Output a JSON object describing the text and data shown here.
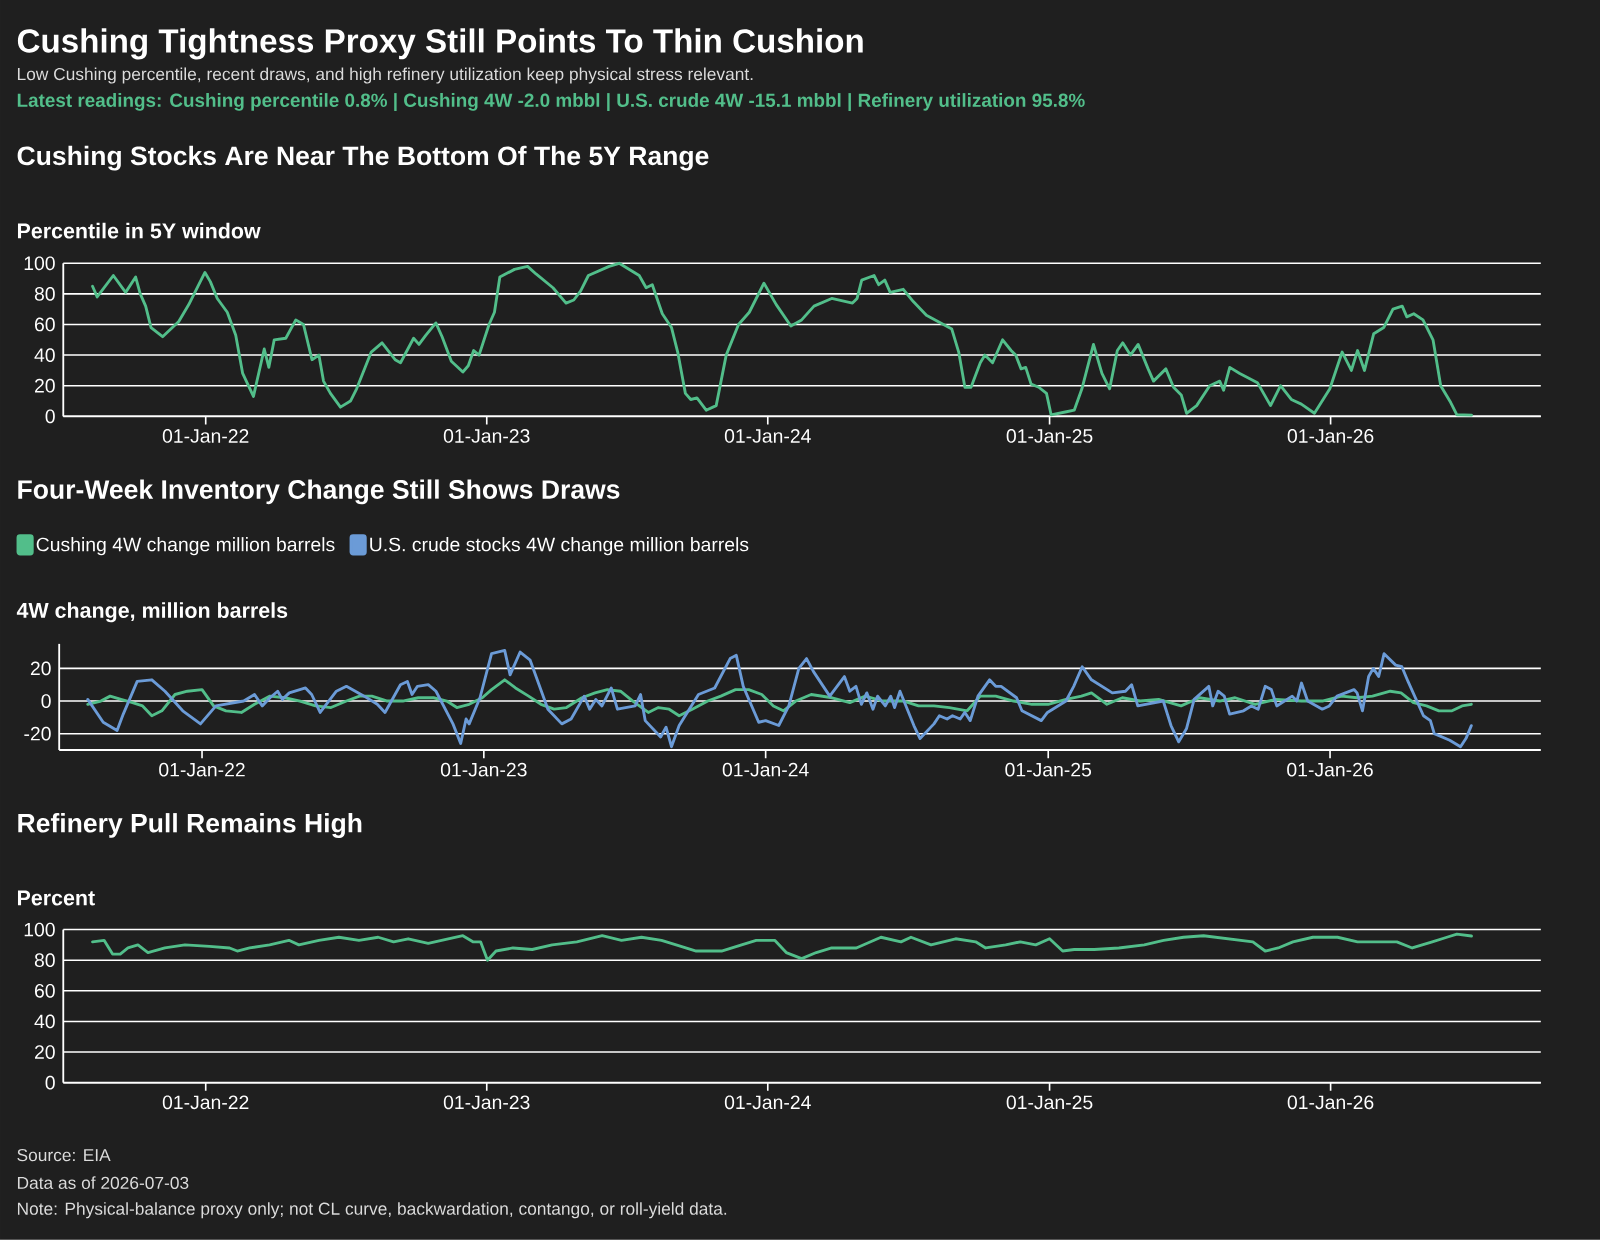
{
  "chart_data": [
    {
      "type": "other",
      "title": "Cushing Tightness Proxy Still Points To Thin Cushion",
      "subtitle": "Low Cushing percentile, recent draws, and high refinery utilization keep physical stress relevant.",
      "annotations": [
        "Latest readings: Cushing percentile 0.8% | Cushing 4W -2.0 mbbl | U.S. crude 4W -15.1 mbbl | Refinery utilization 95.8%"
      ]
    },
    {
      "type": "line",
      "title": "Cushing Stocks Are Near The Bottom Of The 5Y Range",
      "ylabel": "Percentile in 5Y window",
      "x": [
        "2021-08-07",
        "2021-08-13",
        "2021-09-03",
        "2021-09-19",
        "2021-10-02",
        "2021-10-08",
        "2021-10-15",
        "2021-10-22",
        "2021-11-06",
        "2021-11-27",
        "2021-12-10",
        "2021-12-22",
        "2021-12-31",
        "2022-01-07",
        "2022-01-16",
        "2022-01-29",
        "2022-02-09",
        "2022-02-18",
        "2022-03-04",
        "2022-03-18",
        "2022-03-24",
        "2022-03-31",
        "2022-04-15",
        "2022-04-28",
        "2022-05-08",
        "2022-05-19",
        "2022-05-28",
        "2022-06-03",
        "2022-06-12",
        "2022-06-25",
        "2022-07-08",
        "2022-07-16",
        "2022-08-04",
        "2022-08-18",
        "2022-09-04",
        "2022-09-11",
        "2022-09-28",
        "2022-10-05",
        "2022-10-14",
        "2022-10-27",
        "2022-11-04",
        "2022-11-16",
        "2022-12-01",
        "2022-12-08",
        "2022-12-15",
        "2022-12-22",
        "2023-01-04",
        "2023-01-11",
        "2023-01-18",
        "2023-02-06",
        "2023-02-23",
        "2023-03-06",
        "2023-03-28",
        "2023-04-14",
        "2023-04-24",
        "2023-05-03",
        "2023-05-13",
        "2023-06-09",
        "2023-06-22",
        "2023-07-18",
        "2023-07-27",
        "2023-08-04",
        "2023-08-17",
        "2023-08-29",
        "2023-09-06",
        "2023-09-16",
        "2023-09-23",
        "2023-10-01",
        "2023-10-13",
        "2023-10-26",
        "2023-11-08",
        "2023-11-24",
        "2023-12-08",
        "2023-12-27",
        "2024-01-12",
        "2024-01-31",
        "2024-02-14",
        "2024-03-01",
        "2024-03-24",
        "2024-04-20",
        "2024-04-26",
        "2024-05-02",
        "2024-05-18",
        "2024-05-24",
        "2024-06-01",
        "2024-06-08",
        "2024-06-25",
        "2024-07-08",
        "2024-07-25",
        "2024-08-27",
        "2024-09-05",
        "2024-09-13",
        "2024-09-21",
        "2024-10-03",
        "2024-10-09",
        "2024-10-19",
        "2024-11-01",
        "2024-11-12",
        "2024-11-18",
        "2024-11-25",
        "2024-12-01",
        "2024-12-08",
        "2024-12-18",
        "2024-12-28",
        "2025-01-03",
        "2025-01-23",
        "2025-02-02",
        "2025-02-12",
        "2025-02-27",
        "2025-03-10",
        "2025-03-20",
        "2025-03-30",
        "2025-04-06",
        "2025-04-16",
        "2025-04-26",
        "2025-05-09",
        "2025-05-16",
        "2025-06-01",
        "2025-06-11",
        "2025-06-21",
        "2025-06-28",
        "2025-07-11",
        "2025-07-28",
        "2025-08-10",
        "2025-08-15",
        "2025-08-23",
        "2025-09-05",
        "2025-09-28",
        "2025-10-15",
        "2025-10-28",
        "2025-11-11",
        "2025-11-24",
        "2025-12-11",
        "2025-12-31",
        "2026-01-16",
        "2026-01-28",
        "2026-02-05",
        "2026-02-14",
        "2026-02-26",
        "2026-03-11",
        "2026-03-23",
        "2026-04-04",
        "2026-04-10",
        "2026-04-19",
        "2026-05-01",
        "2026-05-14",
        "2026-05-24",
        "2026-06-06",
        "2026-06-14",
        "2026-07-03"
      ],
      "series": [
        {
          "color": "#52be8a",
          "values": [
            85,
            78,
            92,
            81,
            91,
            80,
            72,
            58,
            52,
            62,
            73,
            85,
            94,
            88,
            77,
            68,
            53,
            28,
            13,
            44,
            32,
            50,
            51,
            63,
            60,
            37,
            40,
            23,
            15,
            6,
            10,
            18,
            42,
            48,
            37,
            35,
            51,
            47,
            53,
            61,
            52,
            36,
            29,
            33,
            43,
            40,
            60,
            68,
            91,
            96,
            98,
            93,
            84,
            74,
            76,
            82,
            92,
            98,
            100,
            92,
            84,
            86,
            67,
            58,
            42,
            15,
            11,
            12,
            4,
            7,
            40,
            60,
            68,
            87,
            73,
            59,
            63,
            72,
            77,
            74,
            77,
            89,
            92,
            86,
            89,
            81,
            83,
            75,
            66,
            57,
            42,
            19,
            19,
            35,
            40,
            35,
            50,
            43,
            40,
            31,
            32,
            21,
            19,
            15,
            1,
            3,
            4,
            18,
            47,
            28,
            18,
            43,
            48,
            40,
            47,
            31,
            23,
            31,
            19,
            14,
            2,
            7,
            20,
            23,
            17,
            32,
            28,
            22,
            7,
            20,
            11,
            8,
            2,
            18,
            42,
            30,
            43,
            30,
            54,
            58,
            70,
            72,
            65,
            67,
            63,
            50,
            20,
            9,
            1,
            0.8
          ]
        }
      ],
      "xlim": [
        "2021-06-30",
        "2026-10-01"
      ],
      "ylim": [
        0,
        100
      ],
      "xticks": [
        {
          "value": "2022-01-01",
          "label": "01-Jan-22"
        },
        {
          "value": "2023-01-01",
          "label": "01-Jan-23"
        },
        {
          "value": "2024-01-01",
          "label": "01-Jan-24"
        },
        {
          "value": "2025-01-01",
          "label": "01-Jan-25"
        },
        {
          "value": "2026-01-01",
          "label": "01-Jan-26"
        }
      ],
      "yticks": [
        0,
        20,
        40,
        60,
        80,
        100
      ],
      "grid": "y"
    },
    {
      "type": "line",
      "title": "Four-Week Inventory Change Still Shows Draws",
      "ylabel": "4W change, million barrels",
      "series": [
        {
          "name": "Cushing 4W change million barrels",
          "color": "#52be8a",
          "x": [
            "2021-08-06",
            "2021-08-23",
            "2021-09-04",
            "2021-09-18",
            "2021-10-03",
            "2021-10-16",
            "2021-10-28",
            "2021-11-10",
            "2021-11-27",
            "2021-12-13",
            "2022-01-01",
            "2022-01-16",
            "2022-02-01",
            "2022-02-21",
            "2022-03-10",
            "2022-03-30",
            "2022-04-18",
            "2022-05-08",
            "2022-05-28",
            "2022-06-17",
            "2022-07-07",
            "2022-07-24",
            "2022-08-09",
            "2022-08-29",
            "2022-09-18",
            "2022-10-08",
            "2022-10-28",
            "2022-11-14",
            "2022-11-27",
            "2022-12-13",
            "2022-12-30",
            "2023-01-11",
            "2023-01-28",
            "2023-02-11",
            "2023-02-28",
            "2023-03-16",
            "2023-04-02",
            "2023-04-18",
            "2023-05-08",
            "2023-05-25",
            "2023-06-10",
            "2023-06-27",
            "2023-07-13",
            "2023-08-02",
            "2023-08-15",
            "2023-08-29",
            "2023-09-11",
            "2023-09-28",
            "2023-10-18",
            "2023-11-04",
            "2023-11-23",
            "2023-12-10",
            "2023-12-27",
            "2024-01-11",
            "2024-01-24",
            "2024-02-09",
            "2024-02-29",
            "2024-03-27",
            "2024-04-19",
            "2024-05-09",
            "2024-06-01",
            "2024-06-28",
            "2024-07-17",
            "2024-08-06",
            "2024-08-26",
            "2024-09-18",
            "2024-10-05",
            "2024-10-25",
            "2024-11-17",
            "2024-12-11",
            "2025-01-01",
            "2025-01-24",
            "2025-02-13",
            "2025-02-26",
            "2025-03-18",
            "2025-04-07",
            "2025-04-30",
            "2025-05-24",
            "2025-06-22",
            "2025-07-16",
            "2025-08-11",
            "2025-08-31",
            "2025-09-26",
            "2025-10-23",
            "2025-11-25",
            "2025-12-22",
            "2026-01-16",
            "2026-02-05",
            "2026-02-25",
            "2026-03-20",
            "2026-04-03",
            "2026-04-19",
            "2026-05-06",
            "2026-05-22",
            "2026-06-08",
            "2026-06-21",
            "2026-07-03"
          ],
          "values": [
            -2,
            0,
            3,
            1,
            -1,
            -3,
            -9,
            -6,
            4,
            6,
            7,
            -3,
            -6,
            -7,
            -2,
            3,
            2,
            0,
            -3,
            -4,
            0,
            3,
            3,
            0,
            0,
            2,
            2,
            0,
            -4,
            -2,
            2,
            7,
            13,
            8,
            3,
            -2,
            -5,
            -4,
            2,
            5,
            7,
            6,
            0,
            -7,
            -4,
            -5,
            -9,
            -5,
            0,
            3,
            7,
            7,
            4,
            -3,
            -6,
            0,
            4,
            2,
            -1,
            3,
            0,
            0,
            -3,
            -3,
            -4,
            -6,
            3,
            3,
            0,
            -2,
            -2,
            1,
            3,
            5,
            -2,
            2,
            0,
            1,
            -3,
            2,
            0,
            2,
            -2,
            1,
            0,
            0,
            3,
            2,
            3,
            6,
            5,
            -1,
            -3,
            -6,
            -6,
            -3,
            -2.0
          ]
        },
        {
          "name": "U.S. crude stocks 4W change million barrels",
          "color": "#6b9bd7",
          "x": [
            "2021-08-06",
            "2021-08-26",
            "2021-09-13",
            "2021-09-21",
            "2021-10-09",
            "2021-10-28",
            "2021-11-14",
            "2021-12-07",
            "2021-12-30",
            "2022-01-19",
            "2022-02-24",
            "2022-03-10",
            "2022-03-20",
            "2022-03-30",
            "2022-04-09",
            "2022-04-15",
            "2022-04-24",
            "2022-05-15",
            "2022-05-23",
            "2022-06-03",
            "2022-06-24",
            "2022-07-07",
            "2022-07-30",
            "2022-08-16",
            "2022-08-26",
            "2022-09-15",
            "2022-09-24",
            "2022-09-30",
            "2022-10-07",
            "2022-10-21",
            "2022-10-31",
            "2022-11-22",
            "2022-12-02",
            "2022-12-09",
            "2022-12-13",
            "2022-12-27",
            "2023-01-11",
            "2023-01-28",
            "2023-02-04",
            "2023-02-17",
            "2023-03-02",
            "2023-03-25",
            "2023-04-12",
            "2023-04-24",
            "2023-05-11",
            "2023-05-18",
            "2023-05-26",
            "2023-06-03",
            "2023-06-15",
            "2023-06-23",
            "2023-07-16",
            "2023-07-23",
            "2023-07-29",
            "2023-08-18",
            "2023-08-25",
            "2023-09-01",
            "2023-09-11",
            "2023-10-06",
            "2023-10-27",
            "2023-11-16",
            "2023-11-24",
            "2023-12-03",
            "2023-12-23",
            "2024-01-01",
            "2024-01-18",
            "2024-01-31",
            "2024-02-13",
            "2024-02-23",
            "2024-03-03",
            "2024-03-24",
            "2024-04-12",
            "2024-04-19",
            "2024-04-27",
            "2024-05-04",
            "2024-05-11",
            "2024-05-19",
            "2024-05-25",
            "2024-06-04",
            "2024-06-11",
            "2024-06-16",
            "2024-06-23",
            "2024-07-11",
            "2024-07-19",
            "2024-08-06",
            "2024-08-13",
            "2024-08-23",
            "2024-08-30",
            "2024-09-09",
            "2024-09-15",
            "2024-09-22",
            "2024-10-02",
            "2024-10-17",
            "2024-10-25",
            "2024-11-01",
            "2024-11-21",
            "2024-11-28",
            "2024-12-23",
            "2024-12-31",
            "2025-01-24",
            "2025-02-03",
            "2025-02-14",
            "2025-02-26",
            "2025-03-25",
            "2025-04-11",
            "2025-04-19",
            "2025-04-27",
            "2025-05-30",
            "2025-06-09",
            "2025-06-19",
            "2025-06-29",
            "2025-07-09",
            "2025-07-28",
            "2025-08-02",
            "2025-08-09",
            "2025-08-17",
            "2025-08-24",
            "2025-09-11",
            "2025-09-21",
            "2025-09-30",
            "2025-10-09",
            "2025-10-17",
            "2025-10-24",
            "2025-11-13",
            "2025-11-19",
            "2025-11-25",
            "2025-12-03",
            "2025-12-22",
            "2025-12-31",
            "2026-01-10",
            "2026-02-01",
            "2026-02-05",
            "2026-02-12",
            "2026-02-20",
            "2026-02-26",
            "2026-03-05",
            "2026-03-12",
            "2026-03-27",
            "2026-04-04",
            "2026-04-12",
            "2026-05-02",
            "2026-05-11",
            "2026-05-16",
            "2026-06-05",
            "2026-06-19",
            "2026-06-26",
            "2026-07-03"
          ],
          "values": [
            1,
            -13,
            -18,
            -8,
            12,
            13,
            6,
            -6,
            -14,
            -3,
            0,
            4,
            -3,
            2,
            6,
            1,
            5,
            8,
            4,
            -7,
            6,
            9,
            3,
            -2,
            -7,
            10,
            12,
            4,
            9,
            10,
            6,
            -14,
            -26,
            -11,
            -14,
            2,
            29,
            31,
            16,
            30,
            25,
            -5,
            -14,
            -11,
            3,
            -5,
            1,
            -3,
            8,
            -5,
            -3,
            4,
            -12,
            -22,
            -16,
            -28,
            -15,
            4,
            8,
            26,
            28,
            9,
            -13,
            -12,
            -15,
            -3,
            20,
            26,
            18,
            3,
            15,
            6,
            9,
            -2,
            5,
            -5,
            3,
            -3,
            3,
            -4,
            6,
            -15,
            -23,
            -14,
            -9,
            -11,
            -9,
            -11,
            -7,
            -12,
            3,
            13,
            9,
            9,
            2,
            -6,
            -12,
            -7,
            0,
            9,
            21,
            13,
            5,
            6,
            10,
            -3,
            0,
            -15,
            -25,
            -17,
            1,
            9,
            -3,
            6,
            3,
            -8,
            -6,
            -3,
            -5,
            9,
            7,
            -3,
            3,
            0,
            11,
            0,
            -5,
            -3,
            3,
            7,
            5,
            -6,
            15,
            20,
            15,
            29,
            22,
            21,
            12,
            -9,
            -12,
            -20,
            -24,
            -28,
            -23,
            -15.1
          ]
        }
      ],
      "xlim": [
        "2021-06-30",
        "2026-10-01"
      ],
      "ylim": [
        -30,
        35
      ],
      "xticks": [
        {
          "value": "2022-01-01",
          "label": "01-Jan-22"
        },
        {
          "value": "2023-01-01",
          "label": "01-Jan-23"
        },
        {
          "value": "2024-01-01",
          "label": "01-Jan-24"
        },
        {
          "value": "2025-01-01",
          "label": "01-Jan-25"
        },
        {
          "value": "2026-01-01",
          "label": "01-Jan-26"
        }
      ],
      "yticks": [
        -20,
        0,
        20
      ],
      "grid": "y",
      "legend": "top left"
    },
    {
      "type": "line",
      "title": "Refinery Pull Remains High",
      "ylabel": "Percent",
      "x": [
        "2021-08-07",
        "2021-08-22",
        "2021-09-02",
        "2021-09-12",
        "2021-09-22",
        "2021-10-05",
        "2021-10-18",
        "2021-11-09",
        "2021-12-05",
        "2022-01-06",
        "2022-02-01",
        "2022-02-11",
        "2022-02-27",
        "2022-03-25",
        "2022-04-19",
        "2022-05-02",
        "2022-05-28",
        "2022-06-23",
        "2022-07-19",
        "2022-08-13",
        "2022-09-02",
        "2022-09-21",
        "2022-10-17",
        "2022-11-12",
        "2022-12-01",
        "2022-12-14",
        "2022-12-24",
        "2023-01-02",
        "2023-01-13",
        "2023-02-04",
        "2023-03-01",
        "2023-03-27",
        "2023-04-28",
        "2023-05-31",
        "2023-06-25",
        "2023-07-21",
        "2023-08-16",
        "2023-09-04",
        "2023-09-30",
        "2023-11-02",
        "2023-11-28",
        "2023-12-17",
        "2024-01-10",
        "2024-01-25",
        "2024-02-14",
        "2024-03-04",
        "2024-03-24",
        "2024-04-25",
        "2024-05-27",
        "2024-06-22",
        "2024-07-05",
        "2024-07-31",
        "2024-09-01",
        "2024-09-27",
        "2024-10-10",
        "2024-11-05",
        "2024-11-24",
        "2024-12-14",
        "2025-01-01",
        "2025-01-18",
        "2025-02-02",
        "2025-02-28",
        "2025-04-01",
        "2025-05-04",
        "2025-05-29",
        "2025-06-24",
        "2025-07-20",
        "2025-08-21",
        "2025-09-22",
        "2025-10-08",
        "2025-10-25",
        "2025-11-13",
        "2025-12-09",
        "2026-01-10",
        "2026-02-05",
        "2026-03-03",
        "2026-03-28",
        "2026-04-17",
        "2026-05-13",
        "2026-06-01",
        "2026-06-14",
        "2026-07-03"
      ],
      "series": [
        {
          "color": "#52be8a",
          "values": [
            92,
            93,
            84,
            84,
            88,
            90,
            85,
            88,
            90,
            89,
            88,
            86,
            88,
            90,
            93,
            90,
            93,
            95,
            93,
            95,
            92,
            94,
            91,
            94,
            96,
            92,
            92,
            80,
            86,
            88,
            87,
            90,
            92,
            96,
            93,
            95,
            93,
            90,
            86,
            86,
            90,
            93,
            93,
            85,
            81,
            85,
            88,
            88,
            95,
            92,
            95,
            90,
            94,
            92,
            88,
            90,
            92,
            90,
            94,
            86,
            87,
            87,
            88,
            90,
            93,
            95,
            96,
            94,
            92,
            86,
            88,
            92,
            95,
            95,
            92,
            92,
            92,
            88,
            92,
            95,
            97,
            95.8
          ]
        }
      ],
      "xlim": [
        "2021-06-30",
        "2026-10-01"
      ],
      "ylim": [
        0,
        100
      ],
      "xticks": [
        {
          "value": "2022-01-01",
          "label": "01-Jan-22"
        },
        {
          "value": "2023-01-01",
          "label": "01-Jan-23"
        },
        {
          "value": "2024-01-01",
          "label": "01-Jan-24"
        },
        {
          "value": "2025-01-01",
          "label": "01-Jan-25"
        },
        {
          "value": "2026-01-01",
          "label": "01-Jan-26"
        }
      ],
      "yticks": [
        0,
        20,
        40,
        60,
        80,
        100
      ],
      "grid": "y",
      "annotations": [
        "Source: EIA",
        "Data as of 2026-07-03",
        "Note: Physical-balance proxy only; not CL curve, backwardation, contango, or roll-yield data."
      ]
    }
  ]
}
